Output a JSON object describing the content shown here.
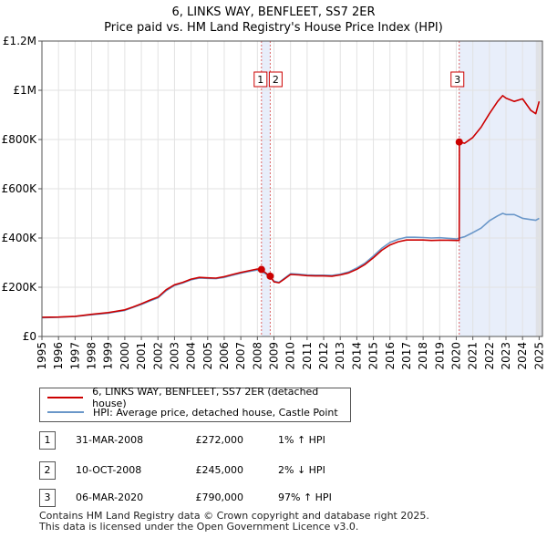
{
  "chart_data": {
    "type": "line",
    "title": "6, LINKS WAY, BENFLEET, SS7 2ER",
    "subtitle": "Price paid vs. HM Land Registry's House Price Index (HPI)",
    "xlabel": "",
    "ylabel": "",
    "xlim": [
      1995,
      2025.2
    ],
    "ylim": [
      0,
      1200000
    ],
    "grid": true,
    "x_ticks": [
      "1995",
      "1996",
      "1997",
      "1998",
      "1999",
      "2000",
      "2001",
      "2002",
      "2003",
      "2004",
      "2005",
      "2006",
      "2007",
      "2008",
      "2009",
      "2010",
      "2011",
      "2012",
      "2013",
      "2014",
      "2015",
      "2016",
      "2017",
      "2018",
      "2019",
      "2020",
      "2021",
      "2022",
      "2023",
      "2024",
      "2025"
    ],
    "y_ticks": [
      {
        "value": 0,
        "label": "£0"
      },
      {
        "value": 200000,
        "label": "£200K"
      },
      {
        "value": 400000,
        "label": "£400K"
      },
      {
        "value": 600000,
        "label": "£600K"
      },
      {
        "value": 800000,
        "label": "£800K"
      },
      {
        "value": 1000000,
        "label": "£1M"
      },
      {
        "value": 1200000,
        "label": "£1.2M"
      }
    ],
    "series": [
      {
        "name": "6, LINKS WAY, BENFLEET, SS7 2ER (detached house)",
        "color": "#cc0000",
        "x": [
          1995.0,
          1996.0,
          1997.0,
          1998.0,
          1999.0,
          2000.0,
          2000.5,
          2001.0,
          2001.5,
          2002.0,
          2002.5,
          2003.0,
          2003.5,
          2004.0,
          2004.5,
          2005.0,
          2005.5,
          2006.0,
          2006.5,
          2007.0,
          2007.5,
          2008.0,
          2008.246,
          2008.5,
          2008.774,
          2009.0,
          2009.3,
          2009.6,
          2010.0,
          2010.5,
          2011.0,
          2011.5,
          2012.0,
          2012.5,
          2013.0,
          2013.5,
          2014.0,
          2014.5,
          2015.0,
          2015.5,
          2016.0,
          2016.5,
          2017.0,
          2017.5,
          2018.0,
          2018.5,
          2019.0,
          2019.5,
          2020.0,
          2020.18,
          2020.19,
          2020.5,
          2021.0,
          2021.5,
          2022.0,
          2022.5,
          2022.8,
          2023.0,
          2023.5,
          2024.0,
          2024.5,
          2024.8,
          2025.0
        ],
        "values": [
          78000,
          79000,
          82000,
          90000,
          97000,
          108000,
          120000,
          133000,
          147000,
          160000,
          190000,
          210000,
          220000,
          233000,
          240000,
          238000,
          237000,
          243000,
          252000,
          260000,
          267000,
          274000,
          272000,
          258000,
          245000,
          222000,
          218000,
          232000,
          252000,
          250000,
          247000,
          246000,
          246000,
          245000,
          250000,
          258000,
          273000,
          293000,
          320000,
          350000,
          372000,
          385000,
          392000,
          392000,
          392000,
          390000,
          391000,
          391000,
          390000,
          390000,
          790000,
          785000,
          808000,
          850000,
          905000,
          955000,
          978000,
          968000,
          955000,
          965000,
          918000,
          905000,
          955000
        ]
      },
      {
        "name": "HPI: Average price, detached house, Castle Point",
        "color": "#6a97c9",
        "x": [
          1995.0,
          1996.0,
          1997.0,
          1998.0,
          1999.0,
          2000.0,
          2000.5,
          2001.0,
          2001.5,
          2002.0,
          2002.5,
          2003.0,
          2003.5,
          2004.0,
          2004.5,
          2005.0,
          2005.5,
          2006.0,
          2006.5,
          2007.0,
          2007.5,
          2008.0,
          2008.5,
          2009.0,
          2009.3,
          2009.6,
          2010.0,
          2010.5,
          2011.0,
          2011.5,
          2012.0,
          2012.5,
          2013.0,
          2013.5,
          2014.0,
          2014.5,
          2015.0,
          2015.5,
          2016.0,
          2016.5,
          2017.0,
          2017.5,
          2018.0,
          2018.5,
          2019.0,
          2019.5,
          2020.0,
          2020.5,
          2021.0,
          2021.5,
          2022.0,
          2022.5,
          2022.8,
          2023.0,
          2023.5,
          2024.0,
          2024.5,
          2024.8,
          2025.0
        ],
        "values": [
          76000,
          78000,
          81000,
          88000,
          95000,
          106000,
          118000,
          130000,
          144000,
          157000,
          186000,
          207000,
          217000,
          230000,
          237000,
          236000,
          235000,
          240000,
          249000,
          257000,
          264000,
          270000,
          255000,
          225000,
          220000,
          235000,
          255000,
          253000,
          250000,
          249000,
          249000,
          248000,
          253000,
          262000,
          278000,
          298000,
          327000,
          358000,
          382000,
          395000,
          403000,
          403000,
          402000,
          400000,
          401000,
          399000,
          396000,
          405000,
          422000,
          440000,
          470000,
          490000,
          500000,
          495000,
          495000,
          480000,
          475000,
          472000,
          480000
        ]
      }
    ],
    "markers": [
      {
        "label": "1",
        "x": 2008.246,
        "value": 272000
      },
      {
        "label": "2",
        "x": 2008.774,
        "value": 245000
      },
      {
        "label": "3",
        "x": 2020.18,
        "value": 790000
      }
    ],
    "future_shade_from": 2024.8
  },
  "legend": {
    "items": [
      {
        "label": "6, LINKS WAY, BENFLEET, SS7 2ER (detached house)",
        "color": "#cc0000"
      },
      {
        "label": "HPI: Average price, detached house, Castle Point",
        "color": "#6a97c9"
      }
    ]
  },
  "transactions": [
    {
      "num": "1",
      "date": "31-MAR-2008",
      "price": "£272,000",
      "hpi": "1% ↑ HPI"
    },
    {
      "num": "2",
      "date": "10-OCT-2008",
      "price": "£245,000",
      "hpi": "2% ↓ HPI"
    },
    {
      "num": "3",
      "date": "06-MAR-2020",
      "price": "£790,000",
      "hpi": "97% ↑ HPI"
    }
  ],
  "footer": {
    "line1": "Contains HM Land Registry data © Crown copyright and database right 2025.",
    "line2": "This data is licensed under the Open Government Licence v3.0."
  }
}
